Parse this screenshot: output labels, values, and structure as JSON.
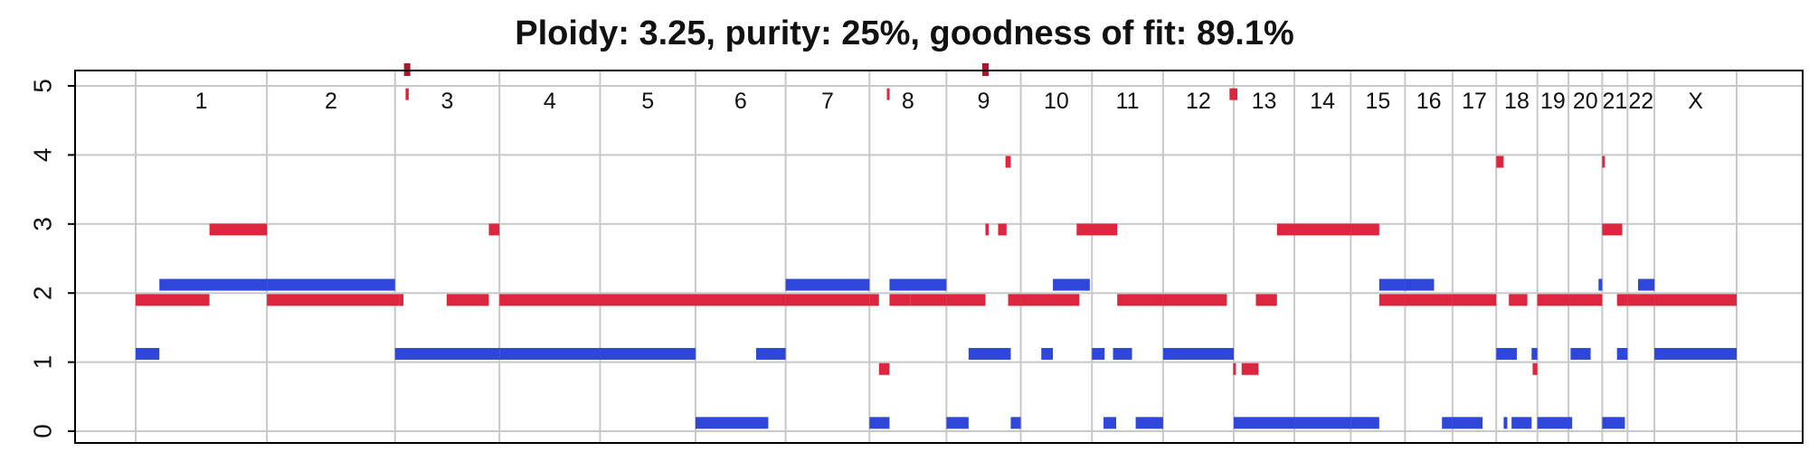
{
  "chart_data": {
    "type": "segments",
    "title": "Ploidy: 3.25, purity: 25%, goodness of fit: 89.1%",
    "ylim": [
      0,
      5
    ],
    "y_ticks": [
      "0",
      "1",
      "2",
      "3",
      "4",
      "5"
    ],
    "grid": true,
    "chromosomes": [
      "1",
      "2",
      "3",
      "4",
      "5",
      "6",
      "7",
      "8",
      "9",
      "10",
      "11",
      "12",
      "13",
      "14",
      "15",
      "16",
      "17",
      "18",
      "19",
      "20",
      "21",
      "22",
      "X"
    ],
    "chrom_bounds": [
      0,
      249,
      492,
      690,
      881,
      1062,
      1233,
      1392,
      1538,
      1679,
      1814,
      1949,
      2083,
      2198,
      2305,
      2408,
      2498,
      2581,
      2659,
      2718,
      2782,
      2830,
      2881,
      3037
    ],
    "colors": {
      "major": "#dc2640",
      "minor": "#2e47d9",
      "clipped": "#a8172a"
    },
    "series": [
      {
        "name": "major",
        "segments": [
          [
            0,
            140,
            1.9
          ],
          [
            140,
            249,
            2.92
          ],
          [
            249,
            500,
            1.9
          ],
          [
            500,
            508,
            1.9
          ],
          [
            512,
            518,
            4.88
          ],
          [
            590,
            670,
            1.9
          ],
          [
            670,
            690,
            2.92
          ],
          [
            690,
            1233,
            1.9
          ],
          [
            1233,
            1392,
            1.9
          ],
          [
            1392,
            1410,
            1.9
          ],
          [
            1410,
            1430,
            0.9
          ],
          [
            1425,
            1430,
            4.88
          ],
          [
            1430,
            1470,
            1.9
          ],
          [
            1470,
            1538,
            1.9
          ],
          [
            1538,
            1612,
            1.9
          ],
          [
            1612,
            1618,
            2.92
          ],
          [
            1636,
            1652,
            2.92
          ],
          [
            1650,
            1660,
            3.9
          ],
          [
            1655,
            1679,
            1.9
          ],
          [
            1679,
            1790,
            1.9
          ],
          [
            1785,
            1862,
            2.92
          ],
          [
            1862,
            1949,
            1.9
          ],
          [
            1949,
            2070,
            1.9
          ],
          [
            2075,
            2090,
            4.88
          ],
          [
            2082,
            2087,
            0.9
          ],
          [
            2098,
            2130,
            0.9
          ],
          [
            2125,
            2165,
            1.9
          ],
          [
            2165,
            2198,
            2.92
          ],
          [
            2198,
            2305,
            2.92
          ],
          [
            2305,
            2359,
            2.92
          ],
          [
            2359,
            2408,
            1.9
          ],
          [
            2408,
            2498,
            1.9
          ],
          [
            2498,
            2581,
            1.9
          ],
          [
            2581,
            2595,
            3.9
          ],
          [
            2605,
            2640,
            1.9
          ],
          [
            2650,
            2659,
            0.9
          ],
          [
            2659,
            2718,
            1.9
          ],
          [
            2718,
            2782,
            1.9
          ],
          [
            2782,
            2787,
            3.9
          ],
          [
            2782,
            2820,
            2.92
          ],
          [
            2810,
            2830,
            1.9
          ],
          [
            2830,
            2881,
            1.9
          ],
          [
            2881,
            3037,
            1.9
          ]
        ]
      },
      {
        "name": "minor",
        "segments": [
          [
            0,
            45,
            1.12
          ],
          [
            45,
            249,
            2.12
          ],
          [
            249,
            492,
            2.12
          ],
          [
            492,
            690,
            1.12
          ],
          [
            690,
            881,
            1.12
          ],
          [
            881,
            1062,
            1.12
          ],
          [
            1062,
            1200,
            0.12
          ],
          [
            1177,
            1233,
            1.12
          ],
          [
            1233,
            1392,
            2.12
          ],
          [
            1392,
            1430,
            0.12
          ],
          [
            1430,
            1538,
            2.12
          ],
          [
            1538,
            1580,
            0.12
          ],
          [
            1580,
            1660,
            1.12
          ],
          [
            1660,
            1679,
            0.12
          ],
          [
            1718,
            1740,
            1.12
          ],
          [
            1740,
            1810,
            2.12
          ],
          [
            1814,
            1838,
            1.12
          ],
          [
            1836,
            1860,
            0.12
          ],
          [
            1854,
            1890,
            1.12
          ],
          [
            1897,
            1949,
            0.12
          ],
          [
            1949,
            2083,
            1.12
          ],
          [
            2083,
            2198,
            0.12
          ],
          [
            2198,
            2305,
            0.12
          ],
          [
            2305,
            2359,
            0.12
          ],
          [
            2359,
            2408,
            2.12
          ],
          [
            2408,
            2463,
            2.12
          ],
          [
            2478,
            2498,
            0.12
          ],
          [
            2498,
            2555,
            0.12
          ],
          [
            2581,
            2620,
            1.12
          ],
          [
            2595,
            2602,
            0.12
          ],
          [
            2610,
            2648,
            0.12
          ],
          [
            2648,
            2659,
            1.12
          ],
          [
            2659,
            2725,
            0.12
          ],
          [
            2722,
            2760,
            1.12
          ],
          [
            2775,
            2782,
            2.12
          ],
          [
            2782,
            2825,
            0.12
          ],
          [
            2810,
            2830,
            1.12
          ],
          [
            2850,
            2881,
            2.12
          ],
          [
            2881,
            3037,
            1.12
          ]
        ]
      }
    ],
    "clipped_markers": [
      [
        515,
        5.1
      ],
      [
        1612,
        5.1
      ]
    ]
  }
}
